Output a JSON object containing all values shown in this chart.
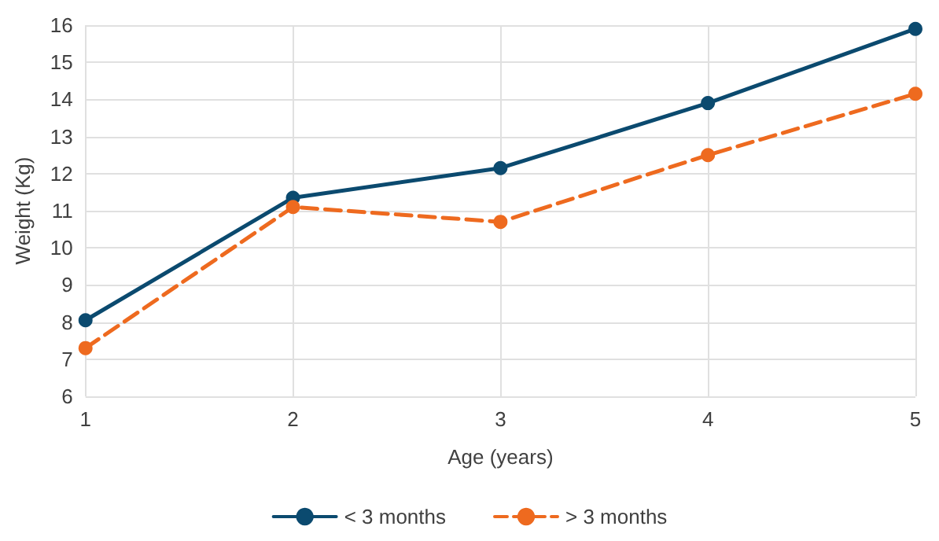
{
  "chart_data": {
    "type": "line",
    "xlabel": "Age (years)",
    "ylabel": "Weight (Kg)",
    "x": [
      1,
      2,
      3,
      4,
      5
    ],
    "series": [
      {
        "name": "< 3 months",
        "color": "#0b4a6f",
        "line_style": "solid",
        "values": [
          8.05,
          11.35,
          12.15,
          13.9,
          15.9
        ]
      },
      {
        "name": "> 3 months",
        "color": "#ee6a1f",
        "line_style": "dashed",
        "values": [
          7.3,
          11.1,
          10.7,
          12.5,
          14.15
        ]
      }
    ],
    "xlim": [
      1,
      5
    ],
    "xticks": [
      1,
      2,
      3,
      4,
      5
    ],
    "ylim": [
      6,
      16
    ],
    "yticks": [
      6,
      7,
      8,
      9,
      10,
      11,
      12,
      13,
      14,
      15,
      16
    ],
    "grid": true,
    "legend": "bottom",
    "marker": "circle"
  }
}
